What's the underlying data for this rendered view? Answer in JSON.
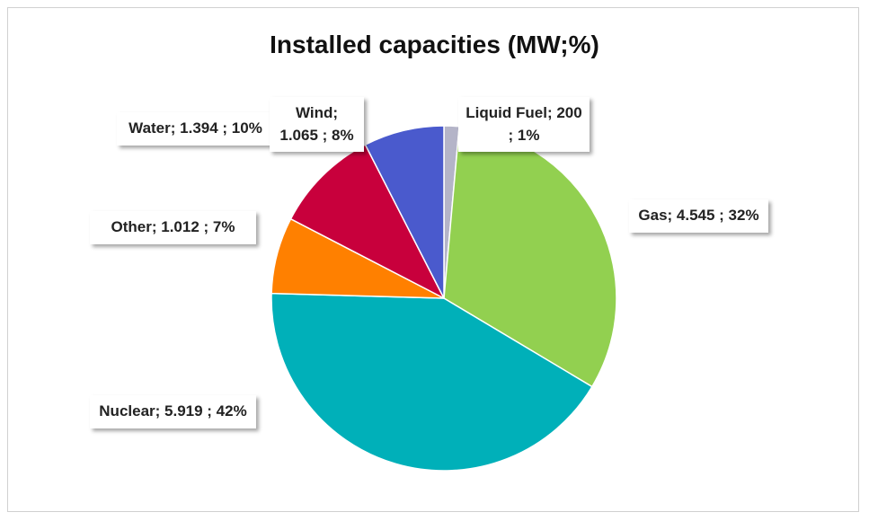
{
  "chart_data": {
    "type": "pie",
    "title": "Installed capacities (MW;%)",
    "categories": [
      "Liquid Fuel",
      "Gas",
      "Nuclear",
      "Other",
      "Water",
      "Wind"
    ],
    "values": [
      200,
      4545,
      5919,
      1012,
      1394,
      1065
    ],
    "value_labels": [
      "Liquid Fuel; 200 ; 1%",
      "Gas; 4.545 ; 32%",
      "Nuclear; 5.919 ; 42%",
      "Other; 1.012 ; 7%",
      "Water; 1.394 ; 10%",
      "Wind; 1.065 ; 8%"
    ],
    "colors": [
      "#b4b4c8",
      "#92d050",
      "#00b0b9",
      "#ff8000",
      "#c8003c",
      "#4a5acd"
    ]
  }
}
